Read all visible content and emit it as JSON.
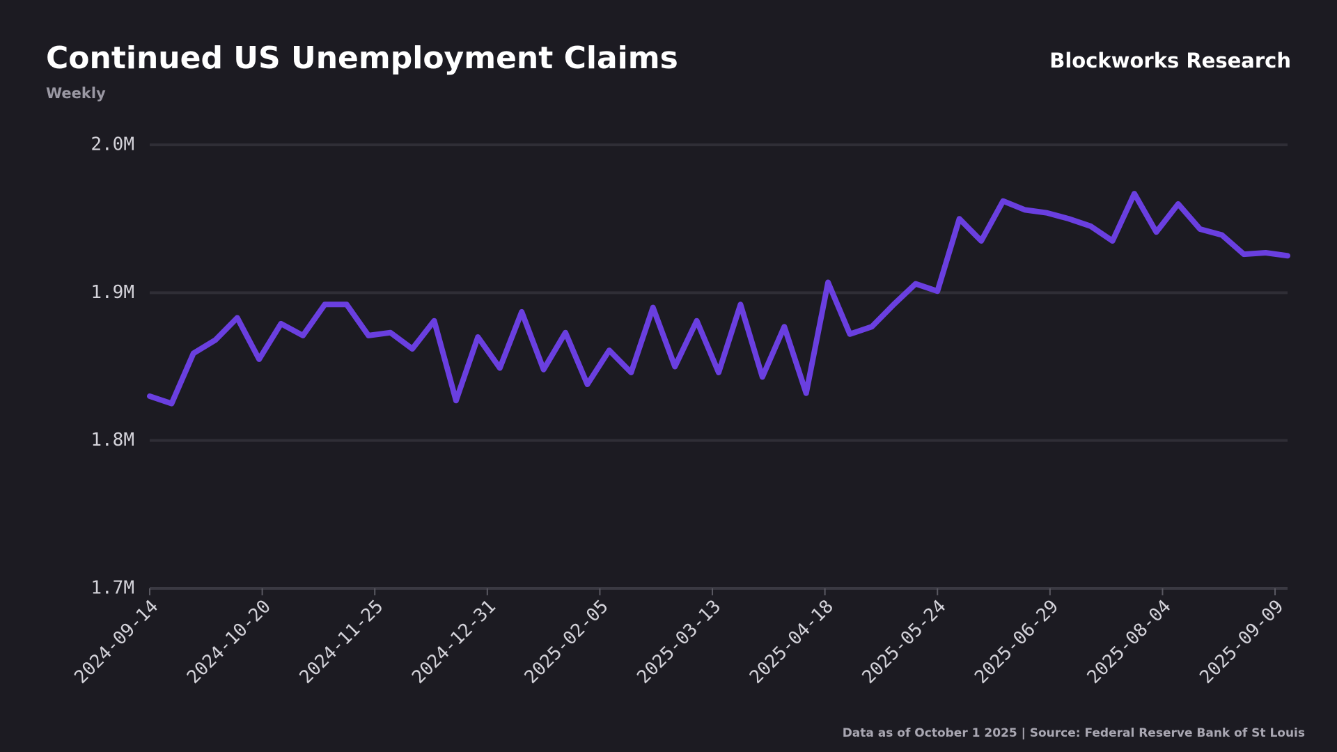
{
  "chart_data": {
    "type": "line",
    "title": "Continued US Unemployment Claims",
    "subtitle": "Weekly",
    "brand": "Blockworks Research",
    "footer": "Data as of October 1 2025 | Source:  Federal Reserve Bank of St Louis",
    "color": "#6a3fe0",
    "grid": true,
    "x": [
      "2024-09-14",
      "2024-09-21",
      "2024-09-28",
      "2024-10-05",
      "2024-10-12",
      "2024-10-19",
      "2024-10-26",
      "2024-11-02",
      "2024-11-09",
      "2024-11-16",
      "2024-11-23",
      "2024-11-30",
      "2024-12-07",
      "2024-12-14",
      "2024-12-21",
      "2024-12-28",
      "2025-01-04",
      "2025-01-11",
      "2025-01-18",
      "2025-01-25",
      "2025-02-01",
      "2025-02-08",
      "2025-02-15",
      "2025-02-22",
      "2025-03-01",
      "2025-03-08",
      "2025-03-15",
      "2025-03-22",
      "2025-03-29",
      "2025-04-05",
      "2025-04-12",
      "2025-04-19",
      "2025-04-26",
      "2025-05-03",
      "2025-05-10",
      "2025-05-17",
      "2025-05-24",
      "2025-05-31",
      "2025-06-07",
      "2025-06-14",
      "2025-06-21",
      "2025-06-28",
      "2025-07-05",
      "2025-07-12",
      "2025-07-19",
      "2025-07-26",
      "2025-08-02",
      "2025-08-09",
      "2025-08-16",
      "2025-08-23",
      "2025-08-30",
      "2025-09-06",
      "2025-09-13"
    ],
    "values": [
      1830000,
      1825000,
      1859000,
      1868000,
      1883000,
      1855000,
      1879000,
      1871000,
      1892000,
      1892000,
      1871000,
      1873000,
      1862000,
      1881000,
      1827000,
      1870000,
      1849000,
      1887000,
      1848000,
      1873000,
      1838000,
      1861000,
      1846000,
      1890000,
      1850000,
      1881000,
      1846000,
      1892000,
      1843000,
      1877000,
      1832000,
      1907000,
      1872000,
      1877000,
      1892000,
      1906000,
      1901000,
      1950000,
      1935000,
      1962000,
      1956000,
      1954000,
      1950000,
      1945000,
      1935000,
      1967000,
      1941000,
      1960000,
      1943000,
      1939000,
      1926000,
      1927000,
      1925000
    ],
    "xlim": [
      "2024-09-14",
      "2025-09-13"
    ],
    "xticks": [
      "2024-09-14",
      "2024-10-20",
      "2024-11-25",
      "2024-12-31",
      "2025-02-05",
      "2025-03-13",
      "2025-04-18",
      "2025-05-24",
      "2025-06-29",
      "2025-08-04",
      "2025-09-09"
    ],
    "ylim": [
      1700000,
      2000000
    ],
    "yticks": [
      {
        "value": 1700000,
        "label": "1.7M"
      },
      {
        "value": 1800000,
        "label": "1.8M"
      },
      {
        "value": 1900000,
        "label": "1.9M"
      },
      {
        "value": 2000000,
        "label": "2.0M"
      }
    ]
  }
}
